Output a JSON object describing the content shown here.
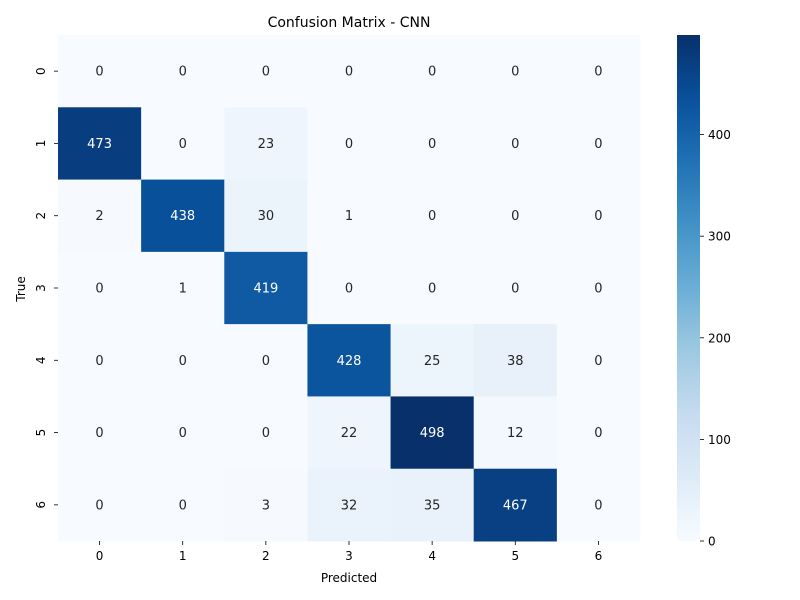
{
  "chart_data": {
    "type": "heatmap",
    "title": "Confusion Matrix - CNN",
    "xlabel": "Predicted",
    "ylabel": "True",
    "x_categories": [
      "0",
      "1",
      "2",
      "3",
      "4",
      "5",
      "6"
    ],
    "y_categories": [
      "0",
      "1",
      "2",
      "3",
      "4",
      "5",
      "6"
    ],
    "values": [
      [
        0,
        0,
        0,
        0,
        0,
        0,
        0
      ],
      [
        473,
        0,
        23,
        0,
        0,
        0,
        0
      ],
      [
        2,
        438,
        30,
        1,
        0,
        0,
        0
      ],
      [
        0,
        1,
        419,
        0,
        0,
        0,
        0
      ],
      [
        0,
        0,
        0,
        428,
        25,
        38,
        0
      ],
      [
        0,
        0,
        0,
        22,
        498,
        12,
        0
      ],
      [
        0,
        0,
        3,
        32,
        35,
        467,
        0
      ]
    ],
    "colormap": "Blues",
    "color_range": [
      0,
      498
    ],
    "colorbar_ticks": [
      0,
      100,
      200,
      300,
      400
    ],
    "colors": {
      "low": "#f7fbff",
      "high": "#08306b"
    }
  }
}
